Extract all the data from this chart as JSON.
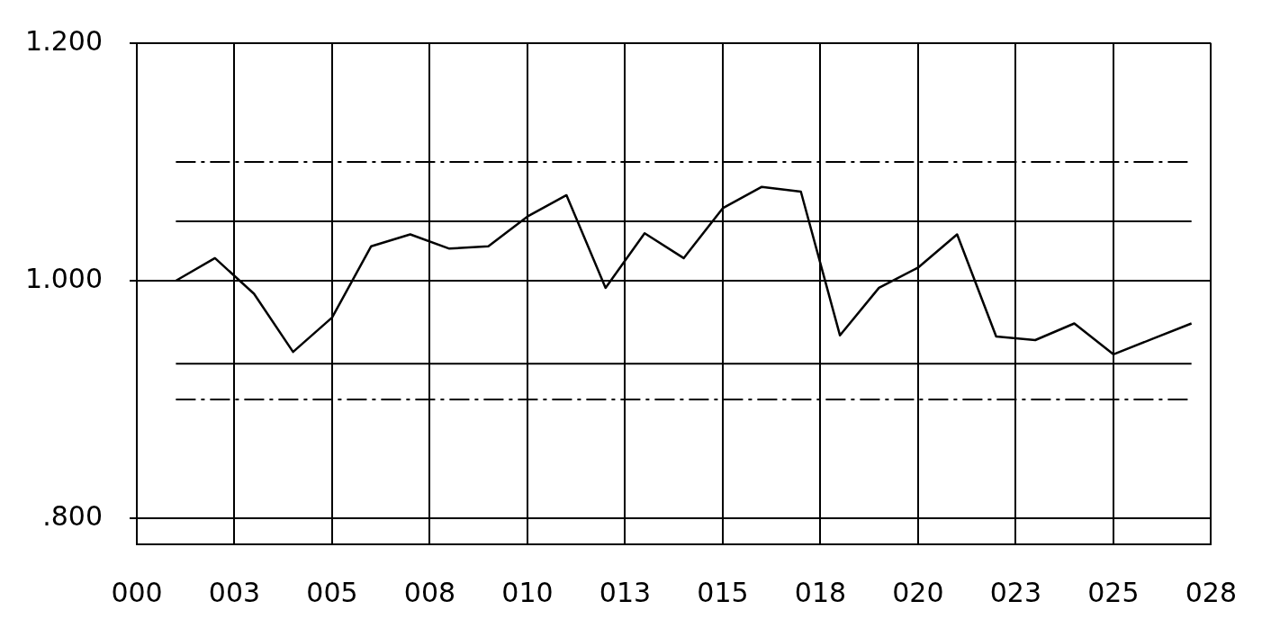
{
  "chart_data": {
    "type": "line",
    "x": [
      1,
      2,
      3,
      4,
      5,
      6,
      7,
      8,
      9,
      10,
      11,
      12,
      13,
      14,
      15,
      16,
      17,
      18,
      19,
      20,
      21,
      22,
      23,
      24,
      25,
      26,
      27
    ],
    "series": [
      {
        "color": "#000000",
        "values": [
          1.0,
          1.019,
          0.989,
          0.94,
          0.969,
          1.029,
          1.039,
          1.027,
          1.029,
          1.054,
          1.072,
          0.994,
          1.04,
          1.019,
          1.061,
          1.079,
          1.075,
          0.954,
          0.994,
          1.011,
          1.039,
          0.953,
          0.95,
          0.964,
          0.938,
          0.951,
          0.964
        ]
      }
    ],
    "xlim": [
      0,
      27.5
    ],
    "xticks": [
      {
        "value": 0,
        "label": "000"
      },
      {
        "value": 2.5,
        "label": "003"
      },
      {
        "value": 5,
        "label": "005"
      },
      {
        "value": 7.5,
        "label": "008"
      },
      {
        "value": 10,
        "label": "010"
      },
      {
        "value": 12.5,
        "label": "013"
      },
      {
        "value": 15,
        "label": "015"
      },
      {
        "value": 17.5,
        "label": "018"
      },
      {
        "value": 20,
        "label": "020"
      },
      {
        "value": 22.5,
        "label": "023"
      },
      {
        "value": 25,
        "label": "025"
      },
      {
        "value": 27.5,
        "label": "028"
      }
    ],
    "ylim": [
      0.778,
      1.2
    ],
    "yticks": [
      {
        "value": 0.8,
        "label": ".800"
      },
      {
        "value": 1.0,
        "label": "1.000"
      },
      {
        "value": 1.2,
        "label": "1.200"
      }
    ],
    "ref_lines": [
      {
        "axis": "y",
        "value": 1.1,
        "color": "#000000",
        "line_style": "dashed"
      },
      {
        "axis": "y",
        "value": 1.05,
        "color": "#000000",
        "line_style": "solid"
      },
      {
        "axis": "y",
        "value": 0.93,
        "color": "#000000",
        "line_style": "solid"
      },
      {
        "axis": "y",
        "value": 0.9,
        "color": "#000000",
        "line_style": "dashed"
      }
    ],
    "grid": true,
    "legend": false,
    "marker": "none",
    "line_style": "solid"
  }
}
